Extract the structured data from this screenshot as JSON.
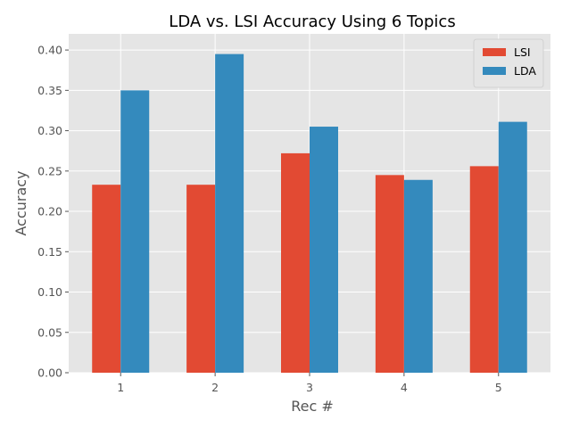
{
  "chart_data": {
    "type": "bar",
    "title": "LDA vs. LSI Accuracy Using 6 Topics",
    "xlabel": "Rec #",
    "ylabel": "Accuracy",
    "categories": [
      "1",
      "2",
      "3",
      "4",
      "5"
    ],
    "series": [
      {
        "name": "LSI",
        "color": "#E24A33",
        "values": [
          0.233,
          0.233,
          0.272,
          0.245,
          0.256
        ]
      },
      {
        "name": "LDA",
        "color": "#348ABD",
        "values": [
          0.35,
          0.395,
          0.305,
          0.239,
          0.311
        ]
      }
    ],
    "ylim": [
      0,
      0.42
    ],
    "yticks": [
      0.0,
      0.05,
      0.1,
      0.15,
      0.2,
      0.25,
      0.3,
      0.35,
      0.4
    ],
    "ytick_labels": [
      "0.00",
      "0.05",
      "0.10",
      "0.15",
      "0.20",
      "0.25",
      "0.30",
      "0.35",
      "0.40"
    ],
    "grid": true,
    "legend_position": "top-right",
    "background_color": "#E5E5E5",
    "grid_color": "#FFFFFF"
  }
}
